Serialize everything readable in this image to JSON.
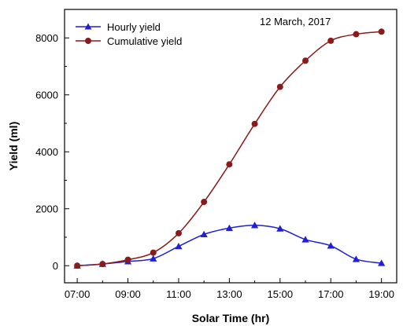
{
  "chart_data": {
    "type": "line",
    "title": "",
    "annotation": "12 March, 2017",
    "xlabel": "Solar Time (hr)",
    "ylabel": "Yield (ml)",
    "x": [
      "07:00",
      "08:00",
      "09:00",
      "10:00",
      "11:00",
      "12:00",
      "13:00",
      "14:00",
      "15:00",
      "16:00",
      "17:00",
      "18:00",
      "19:00"
    ],
    "x_tick_labels": [
      "07:00",
      "09:00",
      "11:00",
      "13:00",
      "15:00",
      "17:00",
      "19:00"
    ],
    "y_tick_labels": [
      "0",
      "2000",
      "4000",
      "6000",
      "8000"
    ],
    "ylim": [
      -600,
      9000
    ],
    "legend_position": "top-left",
    "grid": false,
    "series": [
      {
        "name": "Hourly yield",
        "marker": "triangle",
        "color": "#1f1fd6",
        "values": [
          0,
          60,
          150,
          250,
          680,
          1100,
          1320,
          1420,
          1300,
          920,
          700,
          230,
          90
        ]
      },
      {
        "name": "Cumulative yield",
        "marker": "circle",
        "color": "#8b1a1a",
        "values": [
          0,
          60,
          210,
          460,
          1140,
          2240,
          3560,
          4980,
          6280,
          7200,
          7900,
          8130,
          8220
        ]
      }
    ]
  }
}
